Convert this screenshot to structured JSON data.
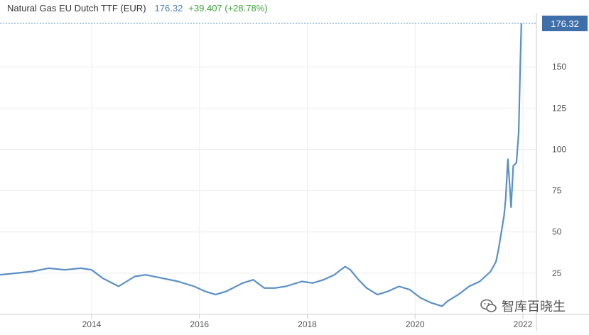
{
  "header": {
    "title": "Natural Gas EU Dutch TTF (EUR)",
    "last_value": "176.32",
    "change": "+39.407 (+28.78%)"
  },
  "watermark": {
    "text": "智库百晓生"
  },
  "colors": {
    "line": "#5a8fc7",
    "badge": "#3f6fa8",
    "value_text": "#4f7fb5",
    "change_text": "#3aa53a",
    "grid": "#eeeeee",
    "axis_text": "#555555"
  },
  "chart_data": {
    "type": "line",
    "title": "Natural Gas EU Dutch TTF (EUR)",
    "xlabel": "",
    "ylabel": "",
    "xlim": [
      2012.3,
      2022.25
    ],
    "ylim": [
      0,
      176.32
    ],
    "x_ticks": [
      2014,
      2016,
      2018,
      2020,
      2022
    ],
    "x_tick_labels": [
      "2014",
      "2016",
      "2018",
      "2020",
      "2022"
    ],
    "y_ticks": [
      25,
      50,
      75,
      100,
      125,
      150
    ],
    "y_tick_labels": [
      "25",
      "50",
      "75",
      "100",
      "125",
      "150"
    ],
    "last_value_label": "176.32",
    "grid": true,
    "legend": "none",
    "y_axis_position": "right",
    "series": [
      {
        "x": [
          2012.3,
          2012.6,
          2012.9,
          2013.2,
          2013.5,
          2013.8,
          2014.0,
          2014.2,
          2014.5,
          2014.8,
          2015.0,
          2015.3,
          2015.6,
          2015.9,
          2016.1,
          2016.3,
          2016.5,
          2016.8,
          2017.0,
          2017.2,
          2017.4,
          2017.6,
          2017.9,
          2018.1,
          2018.3,
          2018.5,
          2018.7,
          2018.8,
          2018.95,
          2019.1,
          2019.3,
          2019.5,
          2019.7,
          2019.9,
          2020.1,
          2020.3,
          2020.5,
          2020.6,
          2020.8,
          2021.0,
          2021.2,
          2021.4,
          2021.5,
          2021.55,
          2021.6,
          2021.65,
          2021.68,
          2021.72,
          2021.75,
          2021.78,
          2021.82,
          2021.88,
          2021.92,
          2021.95,
          2021.97
        ],
        "values": [
          24,
          25,
          26,
          28,
          27,
          28,
          27,
          22,
          17,
          23,
          24,
          22,
          20,
          17,
          14,
          12,
          14,
          19,
          21,
          16,
          16,
          17,
          20,
          19,
          21,
          24,
          29,
          27,
          21,
          16,
          12,
          14,
          17,
          15,
          10,
          7,
          5,
          8,
          12,
          17,
          20,
          26,
          32,
          40,
          50,
          60,
          70,
          94,
          80,
          65,
          90,
          92,
          110,
          150,
          176.32
        ]
      }
    ]
  }
}
